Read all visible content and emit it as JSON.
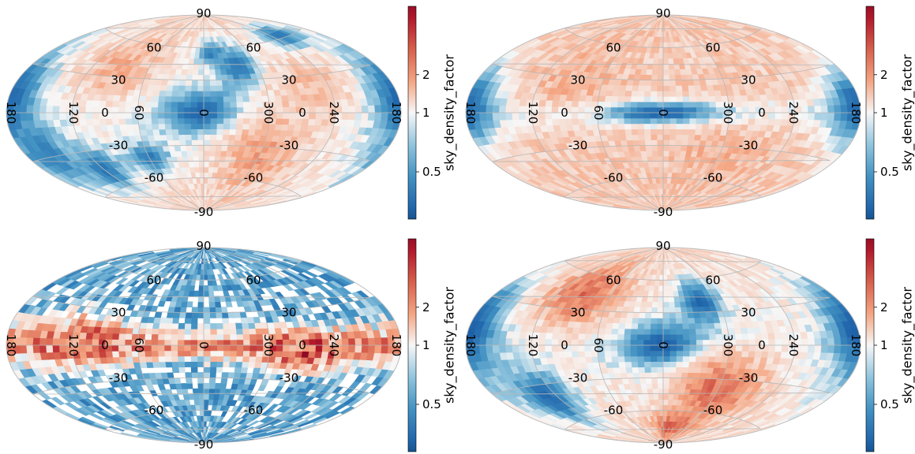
{
  "chart_data": [
    {
      "type": "heatmap",
      "projection": "aitoff",
      "colormap": "RdBu_r",
      "colorbar": {
        "label": "sky_density_factor",
        "ticks": [
          0.5,
          1,
          2
        ],
        "tick_labels": [
          "0.5",
          "1",
          "2"
        ],
        "range": [
          0.1,
          3.8
        ]
      },
      "lon_labels": [
        "180",
        "120",
        "60",
        "0",
        "300",
        "240",
        "180"
      ],
      "lat_labels_left": [
        "60",
        "30",
        "0",
        "-30",
        "-60"
      ],
      "lat_labels_right": [
        "60",
        "30",
        "0",
        "-30",
        "-60"
      ],
      "pole_labels": [
        "90",
        "-90"
      ],
      "pattern": "disk-empty",
      "features": [
        {
          "lon": 0,
          "lat": 0,
          "dlon": 42,
          "dlat": 22,
          "value": 0.15
        },
        {
          "lon": 320,
          "lat": 40,
          "dlon": 25,
          "dlat": 22,
          "value": 0.22
        },
        {
          "lon": 350,
          "lat": 55,
          "dlon": 20,
          "dlat": 12,
          "value": 0.35
        },
        {
          "lon": 230,
          "lat": 62,
          "dlon": 35,
          "dlat": 12,
          "value": 0.25
        },
        {
          "lon": 180,
          "lat": 10,
          "dlon": 30,
          "dlat": 35,
          "value": 0.2
        },
        {
          "lon": 120,
          "lat": -45,
          "dlon": 25,
          "dlat": 20,
          "value": 0.3
        },
        {
          "lon": 60,
          "lat": -40,
          "dlon": 25,
          "dlat": 15,
          "value": 0.3
        },
        {
          "lon": 160,
          "lat": -30,
          "dlon": 25,
          "dlat": 25,
          "value": 0.35
        },
        {
          "lon": 300,
          "lat": -35,
          "dlon": 40,
          "dlat": 35,
          "value": 1.9
        },
        {
          "lon": 90,
          "lat": 40,
          "dlon": 40,
          "dlat": 25,
          "value": 1.75
        },
        {
          "lon": 260,
          "lat": 20,
          "dlon": 40,
          "dlat": 25,
          "value": 1.6
        }
      ]
    },
    {
      "type": "heatmap",
      "projection": "aitoff",
      "colormap": "RdBu_r",
      "colorbar": {
        "label": "sky_density_factor",
        "ticks": [
          0.5,
          1,
          2
        ],
        "tick_labels": [
          "0.5",
          "1",
          "2"
        ],
        "range": [
          0.1,
          3.8
        ]
      },
      "lon_labels": [
        "180",
        "120",
        "60",
        "0",
        "300",
        "240",
        "180"
      ],
      "lat_labels_left": [
        "60",
        "30",
        "0",
        "-30",
        "-60"
      ],
      "lat_labels_right": [
        "60",
        "30",
        "0",
        "-30",
        "-60"
      ],
      "pole_labels": [
        "90",
        "-90"
      ],
      "pattern": "plane-empty",
      "features": [
        {
          "lon": 0,
          "lat": 0,
          "dlon": 60,
          "dlat": 10,
          "value": 0.15
        },
        {
          "lon": 180,
          "lat": 5,
          "dlon": 30,
          "dlat": 30,
          "value": 0.2
        },
        {
          "lon": 90,
          "lat": 30,
          "dlon": 40,
          "dlat": 25,
          "value": 1.7
        },
        {
          "lon": 300,
          "lat": -40,
          "dlon": 45,
          "dlat": 25,
          "value": 1.7
        }
      ]
    },
    {
      "type": "heatmap",
      "projection": "aitoff",
      "colormap": "RdBu_r",
      "colorbar": {
        "label": "sky_density_factor",
        "ticks": [
          0.5,
          1,
          2
        ],
        "tick_labels": [
          "0.5",
          "1",
          "2"
        ],
        "range": [
          0.1,
          3.8
        ]
      },
      "lon_labels": [
        "180",
        "120",
        "60",
        "0",
        "300",
        "240",
        "180"
      ],
      "lat_labels_left": [
        "60",
        "30",
        "0",
        "-30",
        "-60"
      ],
      "lat_labels_right": [
        "60",
        "30",
        "0",
        "-30",
        "-60"
      ],
      "pole_labels": [
        "90",
        "-90"
      ],
      "pattern": "plane-dense",
      "features": [
        {
          "lon": 110,
          "lat": 5,
          "dlon": 35,
          "dlat": 18,
          "value": 2.6
        },
        {
          "lon": 270,
          "lat": -5,
          "dlon": 35,
          "dlat": 15,
          "value": 2.8
        }
      ]
    },
    {
      "type": "heatmap",
      "projection": "aitoff",
      "colormap": "RdBu_r",
      "colorbar": {
        "label": "sky_density_factor",
        "ticks": [
          0.5,
          1,
          2
        ],
        "tick_labels": [
          "0.5",
          "1",
          "2"
        ],
        "range": [
          0.1,
          3.8
        ]
      },
      "lon_labels": [
        "180",
        "120",
        "60",
        "0",
        "300",
        "240",
        "180"
      ],
      "lat_labels_left": [
        "60",
        "30",
        "0",
        "-30",
        "-60"
      ],
      "lat_labels_right": [
        "60",
        "30",
        "0",
        "-30",
        "-60"
      ],
      "pole_labels": [
        "90",
        "-90"
      ],
      "pattern": "disk-empty",
      "features": [
        {
          "lon": 0,
          "lat": 0,
          "dlon": 42,
          "dlat": 22,
          "value": 0.12
        },
        {
          "lon": 320,
          "lat": 40,
          "dlon": 25,
          "dlat": 22,
          "value": 0.2
        },
        {
          "lon": 180,
          "lat": 10,
          "dlon": 30,
          "dlat": 35,
          "value": 0.15
        },
        {
          "lon": 130,
          "lat": -40,
          "dlon": 30,
          "dlat": 25,
          "value": 0.25
        },
        {
          "lon": 90,
          "lat": 45,
          "dlon": 40,
          "dlat": 25,
          "value": 2.4
        },
        {
          "lon": 300,
          "lat": -40,
          "dlon": 40,
          "dlat": 30,
          "value": 2.5
        },
        {
          "lon": 340,
          "lat": -75,
          "dlon": 40,
          "dlat": 12,
          "value": 2.6
        }
      ]
    }
  ]
}
